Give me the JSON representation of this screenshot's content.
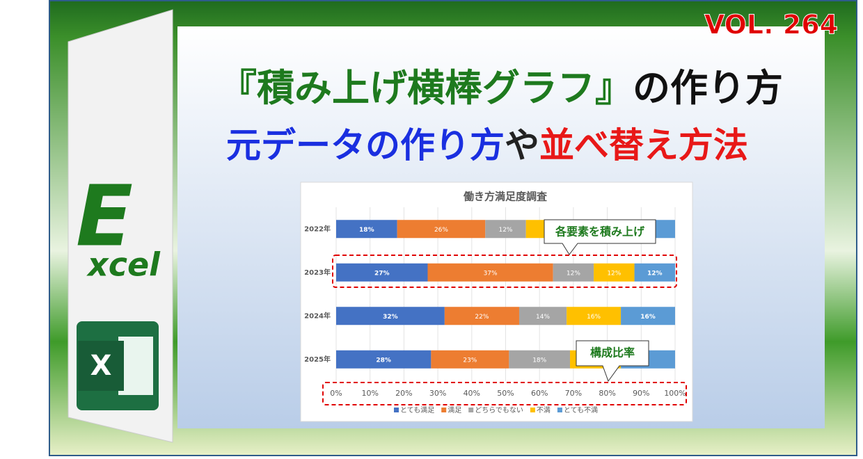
{
  "banner": {
    "volume": "VOL. 264",
    "title_a": "『積み上げ横棒グラフ』",
    "title_b": "の作り方",
    "subtitle_a": "元データの作り方",
    "subtitle_b": "や",
    "subtitle_c": "並べ替え方法",
    "logo_big": "E",
    "logo_small": "xcel",
    "logo_icon": "X"
  },
  "callouts": [
    "各要素を積み上げ",
    "構成比率"
  ],
  "chart_data": {
    "type": "bar",
    "orientation": "horizontal",
    "stacked": true,
    "title": "働き方満足度調査",
    "categories": [
      "2022年",
      "2023年",
      "2024年",
      "2025年"
    ],
    "series": [
      {
        "name": "とても満足",
        "color": "#4472c4",
        "values": [
          18,
          27,
          32,
          28
        ],
        "value_labels": [
          "18%",
          "27%",
          "32%",
          "28%"
        ]
      },
      {
        "name": "満足",
        "color": "#ed7d31",
        "values": [
          26,
          37,
          22,
          23
        ],
        "value_labels": [
          "26%",
          "37%",
          "22%",
          "23%"
        ]
      },
      {
        "name": "どちらでもない",
        "color": "#a5a5a5",
        "values": [
          12,
          12,
          14,
          18
        ],
        "value_labels": [
          "12%",
          "12%",
          "14%",
          "18%"
        ]
      },
      {
        "name": "不満",
        "color": "#ffc000",
        "values": [
          22,
          12,
          16,
          15
        ],
        "value_labels": [
          null,
          "12%",
          "16%",
          null
        ]
      },
      {
        "name": "とても不満",
        "color": "#5b9bd5",
        "values": [
          22,
          12,
          16,
          16
        ],
        "value_labels": [
          null,
          "12%",
          "16%",
          null
        ]
      }
    ],
    "xlim": [
      0,
      100
    ],
    "xticks": [
      {
        "value": 0,
        "label": "0%"
      },
      {
        "value": 10,
        "label": "10%"
      },
      {
        "value": 20,
        "label": "20%"
      },
      {
        "value": 30,
        "label": "30%"
      },
      {
        "value": 40,
        "label": "40%"
      },
      {
        "value": 50,
        "label": "50%"
      },
      {
        "value": 60,
        "label": "60%"
      },
      {
        "value": 70,
        "label": "70%"
      },
      {
        "value": 80,
        "label": "80%"
      },
      {
        "value": 90,
        "label": "90%"
      },
      {
        "value": 100,
        "label": "100%"
      }
    ],
    "grid": true,
    "legend": "bottom"
  }
}
